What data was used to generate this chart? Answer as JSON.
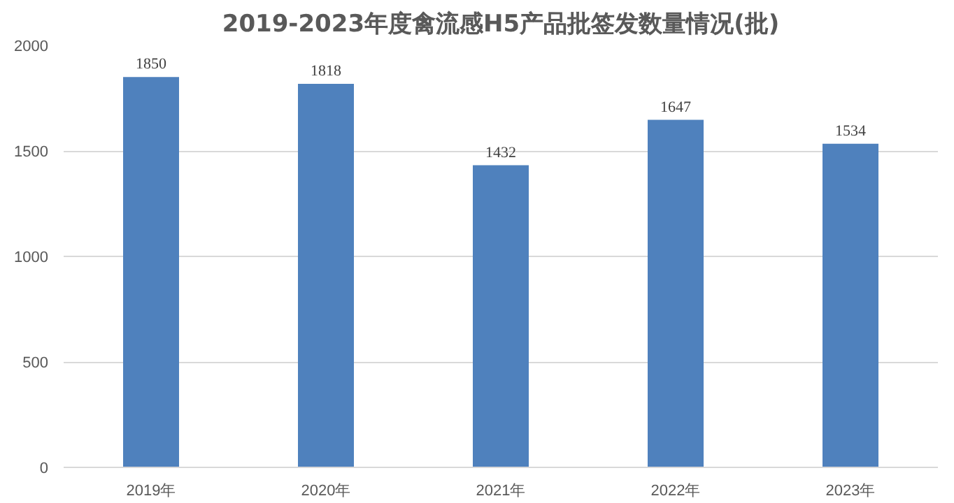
{
  "chart_data": {
    "type": "bar",
    "title": "2019-2023年度禽流感H5产品批签发数量情况(批)",
    "categories": [
      "2019年",
      "2020年",
      "2021年",
      "2022年",
      "2023年"
    ],
    "values": [
      1850,
      1818,
      1432,
      1647,
      1534
    ],
    "color": "#4f81bd",
    "ylim": [
      0,
      2000
    ],
    "yticks": [
      0,
      500,
      1000,
      1500,
      2000
    ],
    "grid": "y",
    "data_labels": true
  }
}
